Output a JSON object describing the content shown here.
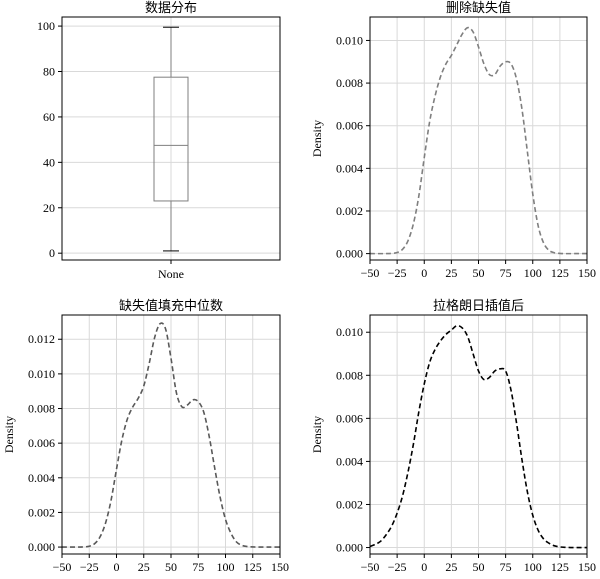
{
  "chart_data": [
    {
      "type": "box",
      "title": "数据分布",
      "categories": [
        "None"
      ],
      "box": {
        "whisker_low": 1,
        "q1": 23,
        "median": 47.5,
        "q3": 77.5,
        "whisker_high": 99.5
      },
      "ylim": [
        -3,
        104
      ],
      "yticks": [
        0,
        20,
        40,
        60,
        80,
        100
      ],
      "yticklabels": [
        "0",
        "20",
        "40",
        "60",
        "80",
        "100"
      ],
      "ylabel": "",
      "grid": true,
      "color": "#7f7f7f"
    },
    {
      "type": "line",
      "title": "删除缺失值",
      "xlabel": "",
      "ylabel": "Density",
      "xlim": [
        -50,
        150
      ],
      "ylim": [
        -0.0003,
        0.0111
      ],
      "xticks": [
        -50,
        -25,
        0,
        25,
        50,
        75,
        100,
        125,
        150
      ],
      "xticklabels": [
        "−50",
        "−25",
        "0",
        "25",
        "50",
        "75",
        "100",
        "125",
        "150"
      ],
      "yticks": [
        0,
        0.002,
        0.004,
        0.006,
        0.008,
        0.01
      ],
      "yticklabels": [
        "0.000",
        "0.002",
        "0.004",
        "0.006",
        "0.008",
        "0.010"
      ],
      "grid": true,
      "series": [
        {
          "color": "#7f7f7f",
          "x": [
            -50,
            -35,
            -30,
            -25,
            -20,
            -15,
            -10,
            -5,
            0,
            5,
            10,
            15,
            20,
            25,
            30,
            35,
            40,
            45,
            50,
            55,
            60,
            65,
            70,
            75,
            80,
            85,
            90,
            95,
            100,
            105,
            110,
            115,
            120,
            125,
            130,
            140,
            150
          ],
          "y": [
            0,
            0,
            1e-05,
            5e-05,
            0.0002,
            0.0006,
            0.0014,
            0.0027,
            0.0045,
            0.0062,
            0.0074,
            0.0083,
            0.0089,
            0.0093,
            0.0098,
            0.0103,
            0.0106,
            0.0104,
            0.0097,
            0.0089,
            0.0084,
            0.0084,
            0.0088,
            0.009,
            0.0089,
            0.0082,
            0.0068,
            0.0048,
            0.0028,
            0.0013,
            0.0005,
            0.00015,
            4e-05,
            1e-05,
            0,
            0,
            0
          ]
        }
      ]
    },
    {
      "type": "line",
      "title": "缺失值填充中位数",
      "xlabel": "",
      "ylabel": "Density",
      "xlim": [
        -50,
        150
      ],
      "ylim": [
        -0.0004,
        0.0134
      ],
      "xticks": [
        -50,
        -25,
        0,
        25,
        50,
        75,
        100,
        125,
        150
      ],
      "xticklabels": [
        "−50",
        "−25",
        "0",
        "25",
        "50",
        "75",
        "100",
        "125",
        "150"
      ],
      "yticks": [
        0,
        0.002,
        0.004,
        0.006,
        0.008,
        0.01,
        0.012
      ],
      "yticklabels": [
        "0.000",
        "0.002",
        "0.004",
        "0.006",
        "0.008",
        "0.010",
        "0.012"
      ],
      "grid": true,
      "series": [
        {
          "color": "#595959",
          "x": [
            -50,
            -35,
            -30,
            -25,
            -20,
            -15,
            -10,
            -5,
            0,
            5,
            10,
            15,
            20,
            25,
            30,
            35,
            40,
            45,
            50,
            55,
            60,
            65,
            70,
            75,
            80,
            85,
            90,
            95,
            100,
            105,
            110,
            115,
            120,
            125,
            130,
            140,
            150
          ],
          "y": [
            0,
            0,
            1e-05,
            5e-05,
            0.0002,
            0.0006,
            0.0014,
            0.0027,
            0.0045,
            0.0062,
            0.0074,
            0.0081,
            0.0086,
            0.0093,
            0.0106,
            0.0121,
            0.0129,
            0.0126,
            0.0109,
            0.0089,
            0.0081,
            0.0082,
            0.0085,
            0.0084,
            0.0078,
            0.0064,
            0.0046,
            0.0029,
            0.0016,
            0.0008,
            0.0003,
            0.0001,
            3e-05,
            1e-05,
            0,
            0,
            0
          ]
        }
      ]
    },
    {
      "type": "line",
      "title": "拉格朗日插值后",
      "xlabel": "",
      "ylabel": "Density",
      "xlim": [
        -50,
        150
      ],
      "ylim": [
        -0.0003,
        0.0108
      ],
      "xticks": [
        -50,
        -25,
        0,
        25,
        50,
        75,
        100,
        125,
        150
      ],
      "xticklabels": [
        "−50",
        "−25",
        "0",
        "25",
        "50",
        "75",
        "100",
        "125",
        "150"
      ],
      "yticks": [
        0,
        0.002,
        0.004,
        0.006,
        0.008,
        0.01
      ],
      "yticklabels": [
        "0.000",
        "0.002",
        "0.004",
        "0.006",
        "0.008",
        "0.010"
      ],
      "grid": true,
      "series": [
        {
          "color": "#000000",
          "x": [
            -50,
            -45,
            -40,
            -35,
            -30,
            -25,
            -20,
            -15,
            -10,
            -5,
            0,
            5,
            10,
            15,
            20,
            25,
            30,
            35,
            40,
            45,
            50,
            55,
            60,
            65,
            70,
            75,
            80,
            85,
            90,
            95,
            100,
            105,
            110,
            115,
            120,
            125,
            130,
            135,
            140,
            145,
            150
          ],
          "y": [
            5e-05,
            0.00015,
            0.0003,
            0.0006,
            0.001,
            0.0016,
            0.0024,
            0.0035,
            0.0048,
            0.0063,
            0.0076,
            0.0086,
            0.0092,
            0.0096,
            0.0099,
            0.0101,
            0.0103,
            0.0102,
            0.0098,
            0.009,
            0.0082,
            0.0078,
            0.0079,
            0.0082,
            0.0083,
            0.0082,
            0.0073,
            0.0058,
            0.0041,
            0.0026,
            0.0015,
            0.0008,
            0.0004,
            0.0002,
            8e-05,
            3e-05,
            1e-05,
            0,
            0,
            0,
            0
          ]
        }
      ]
    }
  ]
}
